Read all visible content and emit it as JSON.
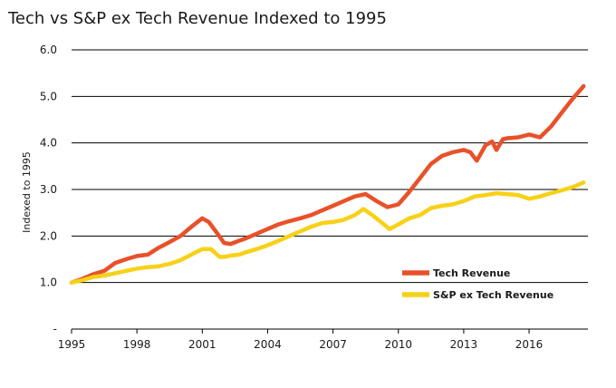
{
  "chart_data": {
    "type": "line",
    "title": "Tech vs S&P ex Tech Revenue Indexed to 1995",
    "xlabel": "",
    "ylabel": "Indexed to 1995",
    "xlim": [
      1995,
      2018.7
    ],
    "ylim": [
      0,
      6
    ],
    "x_ticks": [
      1995,
      1998,
      2001,
      2004,
      2007,
      2010,
      2013,
      2016
    ],
    "x_tick_labels": [
      "1995",
      "1998",
      "2001",
      "2004",
      "2007",
      "2010",
      "2013",
      "2016"
    ],
    "y_ticks": [
      0,
      1,
      2,
      3,
      4,
      5,
      6
    ],
    "y_tick_labels": [
      "-",
      "1.0",
      "2.0",
      "3.0",
      "4.0",
      "5.0",
      "6.0"
    ],
    "grid": true,
    "legend_position": "bottom-right",
    "series": [
      {
        "name": "Tech Revenue",
        "color": "#E8512A",
        "x": [
          1995,
          1995.5,
          1996,
          1996.5,
          1997,
          1997.5,
          1998,
          1998.5,
          1999,
          1999.5,
          2000,
          2000.5,
          2001,
          2001.3,
          2001.7,
          2002,
          2002.3,
          2002.7,
          2003,
          2003.5,
          2004,
          2004.5,
          2005,
          2005.5,
          2006,
          2006.5,
          2007,
          2007.5,
          2008,
          2008.5,
          2009,
          2009.5,
          2010,
          2010.5,
          2011,
          2011.5,
          2012,
          2012.5,
          2013,
          2013.3,
          2013.6,
          2014,
          2014.3,
          2014.5,
          2014.8,
          2015,
          2015.5,
          2016,
          2016.5,
          2017,
          2017.5,
          2018,
          2018.5
        ],
        "values": [
          1.0,
          1.08,
          1.18,
          1.25,
          1.42,
          1.5,
          1.57,
          1.6,
          1.75,
          1.87,
          2.0,
          2.2,
          2.38,
          2.3,
          2.05,
          1.85,
          1.83,
          1.9,
          1.95,
          2.05,
          2.15,
          2.25,
          2.32,
          2.38,
          2.45,
          2.55,
          2.65,
          2.75,
          2.85,
          2.9,
          2.75,
          2.62,
          2.68,
          2.95,
          3.25,
          3.55,
          3.72,
          3.8,
          3.85,
          3.8,
          3.62,
          3.95,
          4.03,
          3.85,
          4.08,
          4.1,
          4.12,
          4.18,
          4.12,
          4.35,
          4.65,
          4.95,
          5.22
        ]
      },
      {
        "name": "S&P ex Tech Revenue",
        "color": "#F7D117",
        "x": [
          1995,
          1995.5,
          1996,
          1996.5,
          1997,
          1997.5,
          1998,
          1998.5,
          1999,
          1999.5,
          2000,
          2000.5,
          2001,
          2001.4,
          2001.8,
          2002,
          2002.3,
          2002.7,
          2003,
          2003.5,
          2004,
          2004.5,
          2005,
          2005.5,
          2006,
          2006.5,
          2007,
          2007.5,
          2008,
          2008.4,
          2008.8,
          2009.2,
          2009.6,
          2010,
          2010.5,
          2011,
          2011.5,
          2012,
          2012.5,
          2013,
          2013.5,
          2014,
          2014.5,
          2015,
          2015.5,
          2016,
          2016.5,
          2017,
          2017.5,
          2018,
          2018.5
        ],
        "values": [
          1.0,
          1.05,
          1.12,
          1.15,
          1.2,
          1.25,
          1.3,
          1.33,
          1.35,
          1.4,
          1.48,
          1.6,
          1.72,
          1.72,
          1.55,
          1.55,
          1.58,
          1.6,
          1.65,
          1.72,
          1.8,
          1.9,
          2.0,
          2.1,
          2.2,
          2.28,
          2.3,
          2.35,
          2.45,
          2.58,
          2.45,
          2.3,
          2.15,
          2.25,
          2.38,
          2.45,
          2.6,
          2.65,
          2.68,
          2.75,
          2.85,
          2.88,
          2.92,
          2.9,
          2.88,
          2.8,
          2.85,
          2.92,
          2.98,
          3.05,
          3.15
        ]
      }
    ]
  }
}
